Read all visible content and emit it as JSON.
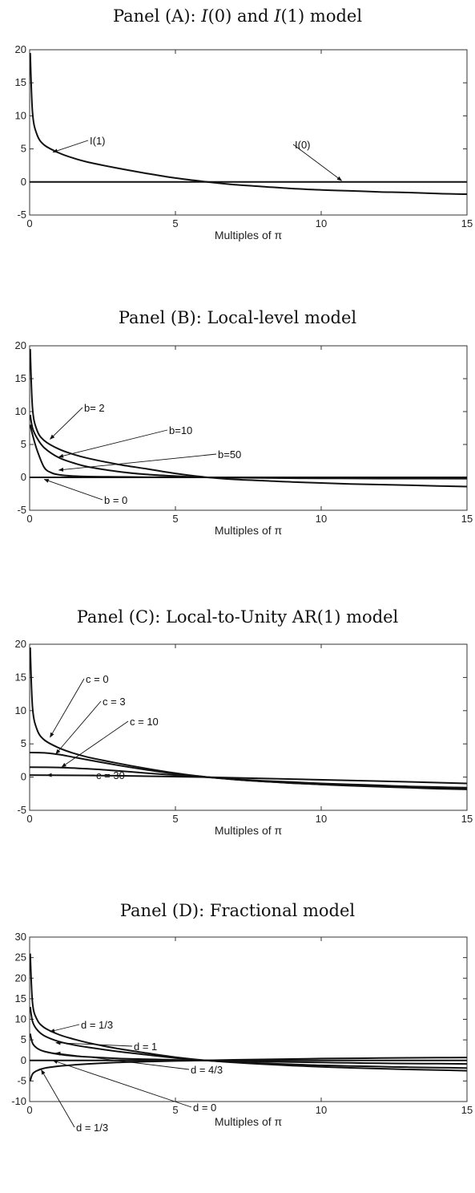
{
  "panels": [
    {
      "title_pre": "Panel (A): ",
      "title_i1": "I",
      "title_mid1": "(0) and ",
      "title_i2": "I",
      "title_post": "(1) model"
    },
    {
      "title": "Panel (B): Local-level model"
    },
    {
      "title": "Panel (C): Local-to-Unity AR(1) model"
    },
    {
      "title": "Panel (D): Fractional model"
    }
  ],
  "chart_data": [
    {
      "type": "line",
      "xlabel": "Multiples of π",
      "xlim": [
        0,
        15
      ],
      "ylim": [
        -5,
        20
      ],
      "xticks": [
        0,
        5,
        10,
        15
      ],
      "yticks": [
        -5,
        0,
        5,
        10,
        15,
        20
      ],
      "series": [
        {
          "name": "I(1)",
          "x": [
            0.02,
            0.1,
            0.25,
            0.5,
            1,
            1.5,
            2,
            3,
            4,
            5,
            6,
            7,
            8,
            9,
            10,
            11,
            12,
            13,
            14,
            15
          ],
          "y": [
            19.5,
            10.5,
            7.2,
            5.6,
            4.4,
            3.6,
            3.0,
            2.1,
            1.3,
            0.6,
            0.05,
            -0.4,
            -0.7,
            -1.0,
            -1.2,
            -1.35,
            -1.5,
            -1.6,
            -1.75,
            -1.85
          ]
        },
        {
          "name": "I(0)",
          "x": [
            0,
            15
          ],
          "y": [
            0,
            0
          ]
        }
      ],
      "annotations": [
        {
          "text": "I(1)",
          "point": [
            0.8,
            4.5
          ]
        },
        {
          "text": "I(0)",
          "point": [
            10.7,
            0.2
          ]
        }
      ]
    },
    {
      "type": "line",
      "xlabel": "Multiples of π",
      "xlim": [
        0,
        15
      ],
      "ylim": [
        -5,
        20
      ],
      "xticks": [
        0,
        5,
        10,
        15
      ],
      "yticks": [
        -5,
        0,
        5,
        10,
        15,
        20
      ],
      "series": [
        {
          "name": "b= 2",
          "x": [
            0.02,
            0.1,
            0.25,
            0.5,
            1,
            1.5,
            2,
            3,
            4,
            5,
            6,
            7,
            8,
            9,
            10,
            11,
            12,
            13,
            14,
            15
          ],
          "y": [
            19.5,
            10.5,
            7.2,
            5.6,
            4.3,
            3.5,
            2.9,
            2.0,
            1.3,
            0.6,
            0.05,
            -0.3,
            -0.5,
            -0.7,
            -0.85,
            -1.0,
            -1.1,
            -1.2,
            -1.3,
            -1.4
          ]
        },
        {
          "name": "b=10",
          "x": [
            0.02,
            0.1,
            0.25,
            0.5,
            1,
            1.5,
            2,
            3,
            4,
            5,
            6,
            7,
            8,
            10,
            12,
            15
          ],
          "y": [
            9.5,
            7.5,
            6.0,
            4.5,
            3.0,
            2.2,
            1.6,
            0.9,
            0.45,
            0.2,
            0.0,
            -0.05,
            -0.1,
            -0.15,
            -0.18,
            -0.2
          ]
        },
        {
          "name": "b=50",
          "x": [
            0.02,
            0.1,
            0.25,
            0.5,
            0.75,
            1,
            1.5,
            2,
            3,
            4,
            5,
            6,
            8,
            10,
            15
          ],
          "y": [
            8.0,
            6.5,
            4.2,
            1.5,
            0.7,
            0.4,
            0.2,
            0.12,
            0.07,
            0.04,
            0.02,
            0.0,
            -0.02,
            -0.03,
            -0.05
          ]
        },
        {
          "name": "b = 0",
          "x": [
            0,
            15
          ],
          "y": [
            0,
            0
          ]
        }
      ],
      "annotations": [
        {
          "text": "b= 2",
          "point": [
            0.7,
            5.8
          ]
        },
        {
          "text": "b=10",
          "point": [
            1.0,
            3.1
          ]
        },
        {
          "text": "b=50",
          "point": [
            1.0,
            1.1
          ]
        },
        {
          "text": "b = 0",
          "point": [
            0.5,
            -0.3
          ]
        }
      ]
    },
    {
      "type": "line",
      "xlabel": "Multiples of π",
      "xlim": [
        0,
        15
      ],
      "ylim": [
        -5,
        20
      ],
      "xticks": [
        0,
        5,
        10,
        15
      ],
      "yticks": [
        -5,
        0,
        5,
        10,
        15,
        20
      ],
      "series": [
        {
          "name": "c = 0",
          "x": [
            0.02,
            0.1,
            0.25,
            0.5,
            1,
            1.5,
            2,
            3,
            4,
            5,
            6,
            7,
            8,
            9,
            10,
            11,
            12,
            13,
            14,
            15
          ],
          "y": [
            19.5,
            10.5,
            7.2,
            5.6,
            4.4,
            3.6,
            3.0,
            2.1,
            1.3,
            0.6,
            0.05,
            -0.35,
            -0.65,
            -0.9,
            -1.1,
            -1.3,
            -1.45,
            -1.6,
            -1.75,
            -1.85
          ]
        },
        {
          "name": "c = 3",
          "x": [
            0,
            0.5,
            1,
            1.5,
            2,
            3,
            4,
            5,
            6,
            7,
            8,
            9,
            10,
            11,
            12,
            13,
            14,
            15
          ],
          "y": [
            3.7,
            3.65,
            3.4,
            3.0,
            2.6,
            1.8,
            1.1,
            0.5,
            0.05,
            -0.35,
            -0.65,
            -0.9,
            -1.1,
            -1.25,
            -1.4,
            -1.55,
            -1.65,
            -1.75
          ]
        },
        {
          "name": "c = 10",
          "x": [
            0,
            1,
            2,
            3,
            4,
            5,
            6,
            7,
            8,
            9,
            10,
            11,
            12,
            13,
            14,
            15
          ],
          "y": [
            1.5,
            1.45,
            1.25,
            0.95,
            0.6,
            0.3,
            0.0,
            -0.3,
            -0.55,
            -0.75,
            -0.95,
            -1.1,
            -1.25,
            -1.4,
            -1.5,
            -1.6
          ]
        },
        {
          "name": "c = 30",
          "x": [
            0,
            3,
            6,
            9,
            12,
            15
          ],
          "y": [
            0.3,
            0.2,
            0.0,
            -0.3,
            -0.6,
            -0.95
          ]
        }
      ],
      "annotations": [
        {
          "text": "c = 0",
          "point": [
            0.7,
            6.0
          ]
        },
        {
          "text": "c = 3",
          "point": [
            0.9,
            3.5
          ]
        },
        {
          "text": "c = 10",
          "point": [
            1.1,
            1.5
          ]
        },
        {
          "text": "c = 30",
          "point": [
            0.6,
            0.3
          ]
        }
      ]
    },
    {
      "type": "line",
      "xlabel": "Multiples of π",
      "xlim": [
        0,
        15
      ],
      "ylim": [
        -10,
        30
      ],
      "xticks": [
        0,
        5,
        10,
        15
      ],
      "yticks": [
        -10,
        -5,
        0,
        5,
        10,
        15,
        20,
        25,
        30
      ],
      "series": [
        {
          "name": "d = 1/3",
          "x": [
            0.02,
            0.1,
            0.25,
            0.5,
            1,
            1.5,
            2,
            3,
            4,
            5,
            6,
            7,
            8,
            9,
            10,
            11,
            12,
            13,
            14,
            15
          ],
          "y": [
            26,
            14,
            10,
            8.0,
            6.3,
            5.2,
            4.3,
            2.9,
            1.8,
            0.8,
            0.05,
            -0.5,
            -0.9,
            -1.25,
            -1.55,
            -1.8,
            -2.0,
            -2.2,
            -2.35,
            -2.5
          ]
        },
        {
          "name": "d = 1",
          "x": [
            0.02,
            0.1,
            0.25,
            0.5,
            1,
            1.5,
            2,
            3,
            4,
            5,
            6,
            7,
            8,
            9,
            10,
            11,
            12,
            13,
            14,
            15
          ],
          "y": [
            13,
            9.5,
            7.5,
            6.0,
            4.6,
            3.8,
            3.2,
            2.2,
            1.4,
            0.6,
            0.0,
            -0.4,
            -0.7,
            -0.95,
            -1.2,
            -1.35,
            -1.5,
            -1.65,
            -1.75,
            -1.85
          ]
        },
        {
          "name": "d = 4/3",
          "x": [
            0.02,
            0.1,
            0.25,
            0.5,
            1,
            1.5,
            2,
            3,
            4,
            5,
            6,
            7,
            8,
            9,
            10,
            11,
            12,
            13,
            14,
            15
          ],
          "y": [
            6.5,
            4.2,
            3.0,
            2.2,
            1.5,
            1.1,
            0.85,
            0.5,
            0.3,
            0.12,
            0.0,
            -0.15,
            -0.3,
            -0.4,
            -0.5,
            -0.6,
            -0.7,
            -0.75,
            -0.8,
            -0.85
          ]
        },
        {
          "name": "d = 0",
          "x": [
            0,
            15
          ],
          "y": [
            0,
            0
          ]
        },
        {
          "name": "d = 1/3",
          "x": [
            0.02,
            0.1,
            0.25,
            0.5,
            1,
            1.5,
            2,
            3,
            4,
            5,
            6,
            7,
            8,
            9,
            10,
            11,
            12,
            13,
            14,
            15
          ],
          "y": [
            -5.0,
            -3.3,
            -2.5,
            -1.9,
            -1.4,
            -1.1,
            -0.85,
            -0.5,
            -0.3,
            -0.12,
            0.0,
            0.15,
            0.25,
            0.35,
            0.45,
            0.52,
            0.58,
            0.63,
            0.68,
            0.72
          ]
        }
      ],
      "annotations": [
        {
          "text": "d = 1/3",
          "point": [
            0.7,
            7.0
          ]
        },
        {
          "text": "d = 1",
          "point": [
            0.9,
            4.3
          ]
        },
        {
          "text": "d = 4/3",
          "point": [
            0.9,
            1.8
          ]
        },
        {
          "text": "d = 0",
          "point": [
            0.8,
            0.0
          ]
        },
        {
          "text": "d = 1/3",
          "point": [
            0.4,
            -2.3
          ]
        }
      ]
    }
  ]
}
